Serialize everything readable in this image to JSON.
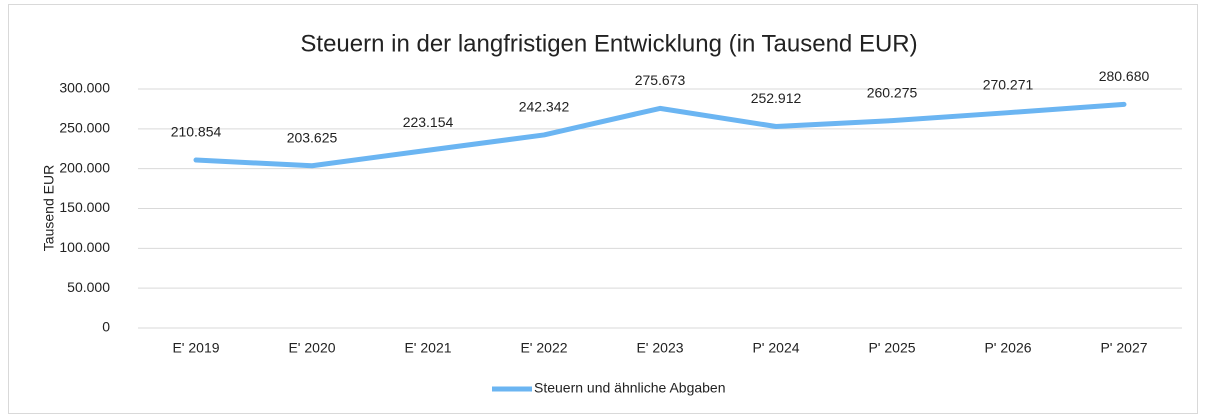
{
  "chart_data": {
    "type": "line",
    "title": "Steuern in der langfristigen Entwicklung (in Tausend EUR)",
    "ylabel": "Tausend EUR",
    "categories": [
      "E' 2019",
      "E' 2020",
      "E' 2021",
      "E' 2022",
      "E' 2023",
      "P' 2024",
      "P' 2025",
      "P' 2026",
      "P' 2027"
    ],
    "series": [
      {
        "name": "Steuern und ähnliche Abgaben",
        "color": "#6bb5f2",
        "values": [
          210854,
          203625,
          223154,
          242342,
          275673,
          252912,
          260275,
          270271,
          280680
        ],
        "value_labels": [
          "210.854",
          "203.625",
          "223.154",
          "242.342",
          "275.673",
          "252.912",
          "260.275",
          "270.271",
          "280.680"
        ]
      }
    ],
    "ylim": [
      0,
      300000
    ],
    "yticks": [
      0,
      {
        "value": 50000,
        "label": "50.000"
      },
      {
        "value": 100000,
        "label": "100.000"
      },
      {
        "value": 150000,
        "label": "150.000"
      },
      {
        "value": 200000,
        "label": "200.000"
      },
      {
        "value": 250000,
        "label": "250.000"
      },
      {
        "value": 300000,
        "label": "300.000"
      }
    ],
    "grid": true,
    "legend": "bottom"
  }
}
